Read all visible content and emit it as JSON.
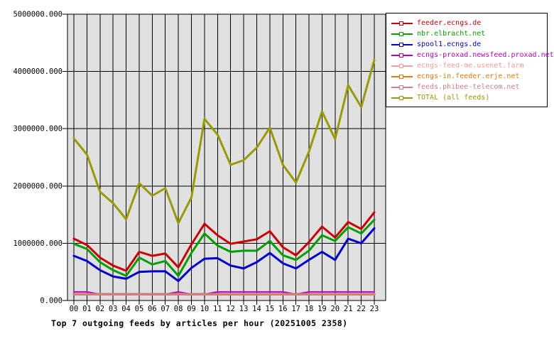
{
  "page": {
    "background": "#ffffff",
    "plot_background": "#e0e0e0",
    "grid_color": "#000000"
  },
  "title": "Top 7 outgoing feeds by articles per hour (20251005 2358)",
  "y_axis": {
    "tick_labels": [
      "5000000.000",
      "4000000.000",
      "3000000.000",
      "2000000.000",
      "1000000.000",
      "0.000"
    ],
    "tick_values": [
      5000000,
      4000000,
      3000000,
      2000000,
      1000000,
      0
    ]
  },
  "x_axis": {
    "tick_labels": [
      "00",
      "01",
      "02",
      "03",
      "04",
      "05",
      "06",
      "07",
      "08",
      "09",
      "10",
      "11",
      "12",
      "13",
      "14",
      "15",
      "16",
      "17",
      "18",
      "19",
      "20",
      "21",
      "22",
      "23"
    ]
  },
  "chart_data": {
    "type": "line",
    "title": "Top 7 outgoing feeds by articles per hour (20251005 2358)",
    "x": [
      "00",
      "01",
      "02",
      "03",
      "04",
      "05",
      "06",
      "07",
      "08",
      "09",
      "10",
      "11",
      "12",
      "13",
      "14",
      "15",
      "16",
      "17",
      "18",
      "19",
      "20",
      "21",
      "22",
      "23"
    ],
    "xlabel": "",
    "ylabel": "",
    "ylim": [
      0,
      5000000
    ],
    "grid": true,
    "legend_position": "top-right",
    "draw_order": [
      3,
      5,
      4,
      6,
      2,
      1,
      0,
      7
    ],
    "series": [
      {
        "name": "feeder.ecngs.de",
        "color": "#cc0000",
        "width": 3,
        "values": [
          1080000,
          970000,
          750000,
          610000,
          520000,
          850000,
          780000,
          820000,
          580000,
          980000,
          1340000,
          1140000,
          990000,
          1030000,
          1070000,
          1210000,
          930000,
          790000,
          1020000,
          1290000,
          1100000,
          1370000,
          1250000,
          1540000
        ]
      },
      {
        "name": "nbr.elbracht.net",
        "color": "#00a000",
        "width": 3,
        "values": [
          990000,
          900000,
          670000,
          530000,
          430000,
          750000,
          630000,
          690000,
          430000,
          830000,
          1170000,
          960000,
          850000,
          870000,
          870000,
          1040000,
          790000,
          710000,
          870000,
          1140000,
          1040000,
          1280000,
          1170000,
          1410000
        ]
      },
      {
        "name": "spool1.ecngs.de",
        "color": "#0000cc",
        "width": 3,
        "values": [
          780000,
          690000,
          530000,
          420000,
          380000,
          500000,
          510000,
          510000,
          340000,
          570000,
          730000,
          740000,
          610000,
          560000,
          670000,
          830000,
          650000,
          560000,
          710000,
          850000,
          710000,
          1080000,
          1000000,
          1260000
        ]
      },
      {
        "name": "ecngs-proxad.newsfeed.proxad.net",
        "color": "#bb00bb",
        "width": 2,
        "values": [
          150000,
          150000,
          110000,
          110000,
          110000,
          110000,
          110000,
          110000,
          150000,
          110000,
          110000,
          150000,
          150000,
          150000,
          150000,
          150000,
          150000,
          110000,
          150000,
          150000,
          150000,
          150000,
          150000,
          150000
        ]
      },
      {
        "name": "ecngs-feed-me.usenet.farm",
        "color": "#ff9999",
        "width": 2,
        "values": [
          115000,
          115000,
          115000,
          115000,
          115000,
          115000,
          115000,
          115000,
          115000,
          115000,
          115000,
          115000,
          115000,
          115000,
          115000,
          115000,
          115000,
          115000,
          115000,
          115000,
          115000,
          115000,
          115000,
          115000
        ]
      },
      {
        "name": "ecngs-in.feeder.erje.net",
        "color": "#ee7700",
        "width": 2,
        "values": [
          100000,
          100000,
          100000,
          100000,
          100000,
          100000,
          100000,
          100000,
          100000,
          100000,
          100000,
          100000,
          100000,
          100000,
          100000,
          100000,
          100000,
          100000,
          100000,
          100000,
          100000,
          100000,
          100000,
          100000
        ]
      },
      {
        "name": "feeds.phibee-telecom.net",
        "color": "#cc8080",
        "width": 3.5,
        "values": [
          110000,
          110000,
          110000,
          110000,
          110000,
          110000,
          110000,
          110000,
          110000,
          110000,
          110000,
          110000,
          110000,
          110000,
          110000,
          110000,
          110000,
          110000,
          110000,
          110000,
          110000,
          110000,
          110000,
          110000
        ]
      },
      {
        "name": "TOTAL (all feeds)",
        "color": "#999900",
        "width": 3,
        "values": [
          2830000,
          2550000,
          1900000,
          1700000,
          1420000,
          2050000,
          1830000,
          1960000,
          1350000,
          1800000,
          3170000,
          2900000,
          2370000,
          2450000,
          2670000,
          3020000,
          2370000,
          2060000,
          2600000,
          3300000,
          2820000,
          3760000,
          3380000,
          4200000
        ]
      }
    ]
  }
}
